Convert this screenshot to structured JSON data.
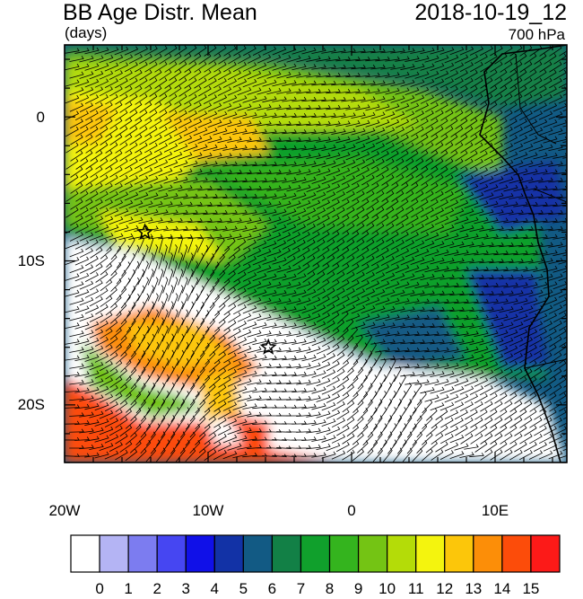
{
  "header": {
    "title": "BB Age Distr. Mean",
    "units": "(days)",
    "datetime": "2018-10-19_12",
    "level": "700 hPa"
  },
  "axes": {
    "lon_ticks": [
      "20W",
      "10W",
      "0",
      "10E"
    ],
    "lat_ticks": [
      "0",
      "10S",
      "20S"
    ],
    "lon_range": [
      -20,
      15
    ],
    "lat_range": [
      -24,
      5
    ]
  },
  "colorbar": {
    "labels": [
      "0",
      "1",
      "2",
      "3",
      "4",
      "5",
      "6",
      "7",
      "8",
      "9",
      "10",
      "11",
      "12",
      "13",
      "14",
      "15"
    ],
    "colors": [
      "#ffffff",
      "#b4b4f4",
      "#7c7cf0",
      "#4646f2",
      "#1010e8",
      "#1232a6",
      "#125a84",
      "#128046",
      "#10a02c",
      "#34b41e",
      "#74c414",
      "#b4dc08",
      "#f4f40e",
      "#fcc60a",
      "#fc8e08",
      "#fc4c0a",
      "#fc1a18"
    ]
  },
  "markers": [
    {
      "name": "star-marker",
      "lon": -14.4,
      "lat": -8.0
    },
    {
      "name": "star-marker",
      "lon": -5.8,
      "lat": -16.0
    }
  ]
}
